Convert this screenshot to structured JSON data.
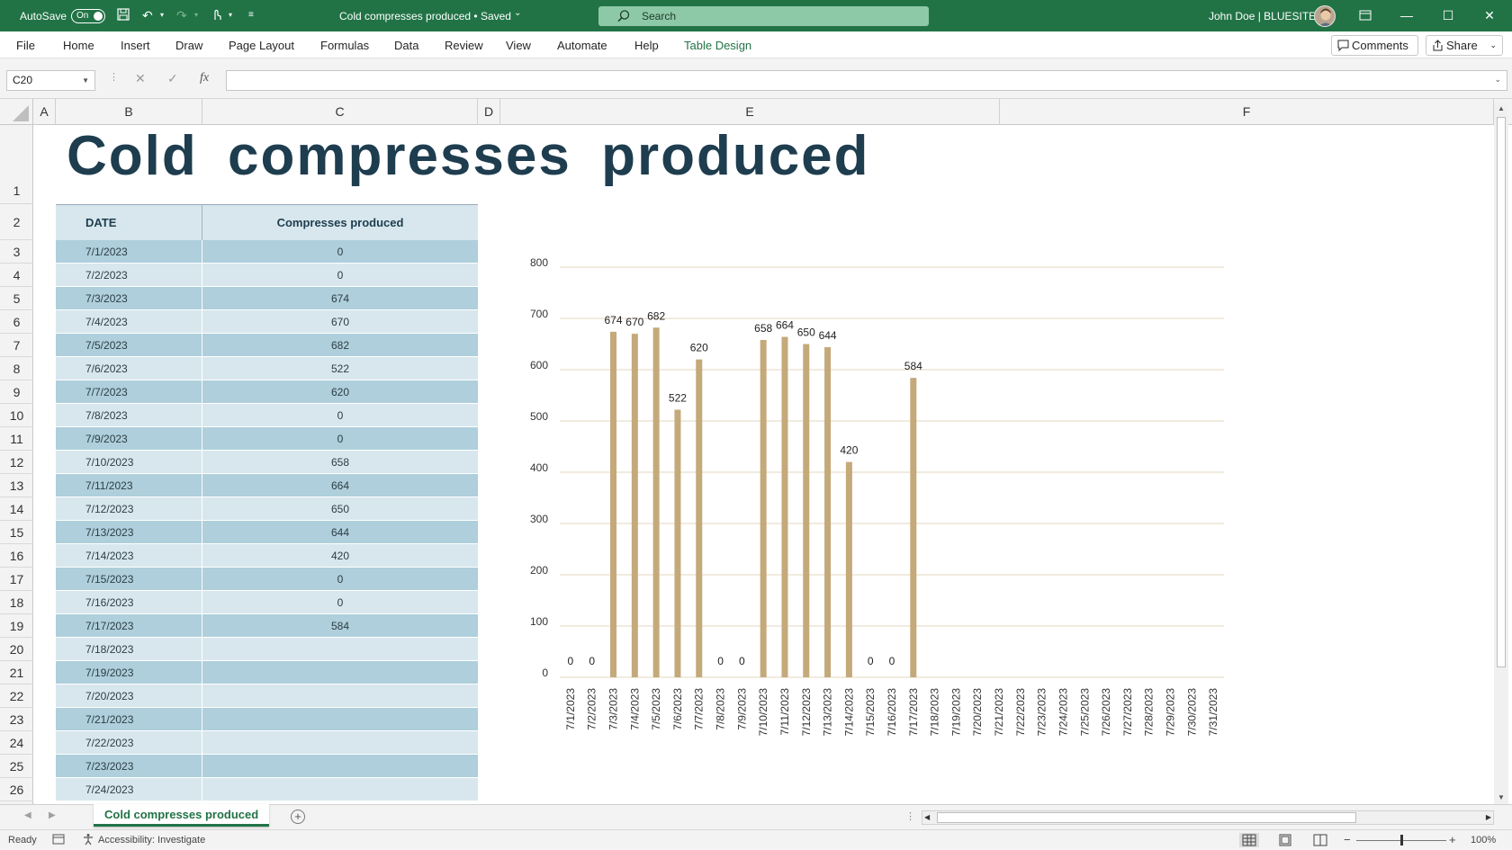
{
  "titlebar": {
    "autosave_label": "AutoSave",
    "autosave_state": "On",
    "doc_title": "Cold compresses produced • Saved",
    "search_placeholder": "Search",
    "user": "John Doe | BLUESITE"
  },
  "ribbon": {
    "tabs": [
      "File",
      "Home",
      "Insert",
      "Draw",
      "Page Layout",
      "Formulas",
      "Data",
      "Review",
      "View",
      "Automate",
      "Help",
      "Table Design"
    ],
    "comments_label": "Comments",
    "share_label": "Share"
  },
  "formula_bar": {
    "name_box": "C20",
    "fx_label": "fx",
    "formula": ""
  },
  "columns": [
    "A",
    "B",
    "C",
    "D",
    "E",
    "F"
  ],
  "rows": [
    "1",
    "2",
    "3",
    "4",
    "5",
    "6",
    "7",
    "8",
    "9",
    "10",
    "11",
    "12",
    "13",
    "14",
    "15",
    "16",
    "17",
    "18",
    "19",
    "20",
    "21",
    "22",
    "23",
    "24",
    "25",
    "26"
  ],
  "sheet": {
    "title": "Cold compresses produced",
    "table": {
      "headers": [
        "DATE",
        "Compresses produced"
      ],
      "rows": [
        [
          "7/1/2023",
          "0"
        ],
        [
          "7/2/2023",
          "0"
        ],
        [
          "7/3/2023",
          "674"
        ],
        [
          "7/4/2023",
          "670"
        ],
        [
          "7/5/2023",
          "682"
        ],
        [
          "7/6/2023",
          "522"
        ],
        [
          "7/7/2023",
          "620"
        ],
        [
          "7/8/2023",
          "0"
        ],
        [
          "7/9/2023",
          "0"
        ],
        [
          "7/10/2023",
          "658"
        ],
        [
          "7/11/2023",
          "664"
        ],
        [
          "7/12/2023",
          "650"
        ],
        [
          "7/13/2023",
          "644"
        ],
        [
          "7/14/2023",
          "420"
        ],
        [
          "7/15/2023",
          "0"
        ],
        [
          "7/16/2023",
          "0"
        ],
        [
          "7/17/2023",
          "584"
        ],
        [
          "7/18/2023",
          ""
        ],
        [
          "7/19/2023",
          ""
        ],
        [
          "7/20/2023",
          ""
        ],
        [
          "7/21/2023",
          ""
        ],
        [
          "7/22/2023",
          ""
        ],
        [
          "7/23/2023",
          ""
        ],
        [
          "7/24/2023",
          ""
        ]
      ]
    }
  },
  "chart_data": {
    "type": "bar",
    "title": "",
    "xlabel": "",
    "ylabel": "",
    "ylim": [
      0,
      800
    ],
    "yticks": [
      0,
      100,
      200,
      300,
      400,
      500,
      600,
      700,
      800
    ],
    "grid": true,
    "bar_color": "#c4a97a",
    "grid_color": "#e3d7bf",
    "categories": [
      "7/1/2023",
      "7/2/2023",
      "7/3/2023",
      "7/4/2023",
      "7/5/2023",
      "7/6/2023",
      "7/7/2023",
      "7/8/2023",
      "7/9/2023",
      "7/10/2023",
      "7/11/2023",
      "7/12/2023",
      "7/13/2023",
      "7/14/2023",
      "7/15/2023",
      "7/16/2023",
      "7/17/2023",
      "7/18/2023",
      "7/19/2023",
      "7/20/2023",
      "7/21/2023",
      "7/22/2023",
      "7/23/2023",
      "7/24/2023",
      "7/25/2023",
      "7/26/2023",
      "7/27/2023",
      "7/28/2023",
      "7/29/2023",
      "7/30/2023",
      "7/31/2023"
    ],
    "values": [
      0,
      0,
      674,
      670,
      682,
      522,
      620,
      0,
      0,
      658,
      664,
      650,
      644,
      420,
      0,
      0,
      584,
      null,
      null,
      null,
      null,
      null,
      null,
      null,
      null,
      null,
      null,
      null,
      null,
      null,
      null
    ]
  },
  "sheet_tabs": {
    "active": "Cold compresses produced"
  },
  "statusbar": {
    "ready": "Ready",
    "accessibility": "Accessibility: Investigate",
    "zoom": "100%"
  },
  "colors": {
    "excel_green": "#217346",
    "header_row": "#d8e7ed",
    "band_dark": "#aecfdb",
    "band_light": "#d8e7ed",
    "title_color": "#1e3d4f"
  }
}
